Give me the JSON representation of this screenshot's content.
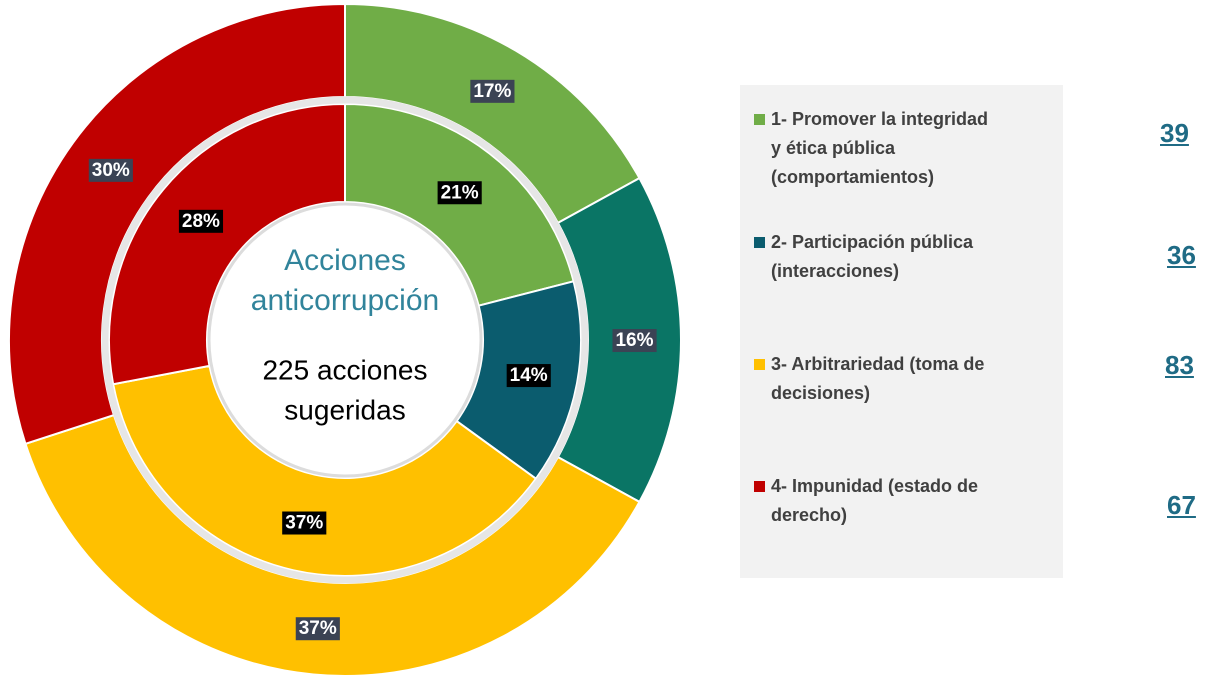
{
  "chart_data": {
    "type": "donut",
    "center_title": [
      "Acciones",
      "anticorrupción"
    ],
    "center_subtitle": [
      "225 acciones",
      "sugeridas"
    ],
    "categories": [
      [
        "1- Promover la integridad",
        "y  ética pública",
        "(comportamientos)"
      ],
      [
        "2- Participación pública",
        "(interacciones)"
      ],
      [
        "3- Arbitrariedad (toma de",
        "decisiones)"
      ],
      [
        "4- Impunidad (estado de",
        "derecho)"
      ]
    ],
    "counts": [
      39,
      36,
      83,
      67
    ],
    "series": [
      {
        "values": [
          17,
          16,
          37,
          30
        ],
        "value_labels": [
          "17%",
          "16%",
          "37%",
          "30%"
        ],
        "colors": [
          "#70ad47",
          "#0a7565",
          "#ffc000",
          "#c00000"
        ]
      },
      {
        "values": [
          21,
          14,
          37,
          28
        ],
        "value_labels": [
          "21%",
          "14%",
          "37%",
          "28%"
        ],
        "colors": [
          "#70ad47",
          "#0b5c6e",
          "#ffc000",
          "#c00000"
        ]
      }
    ]
  }
}
